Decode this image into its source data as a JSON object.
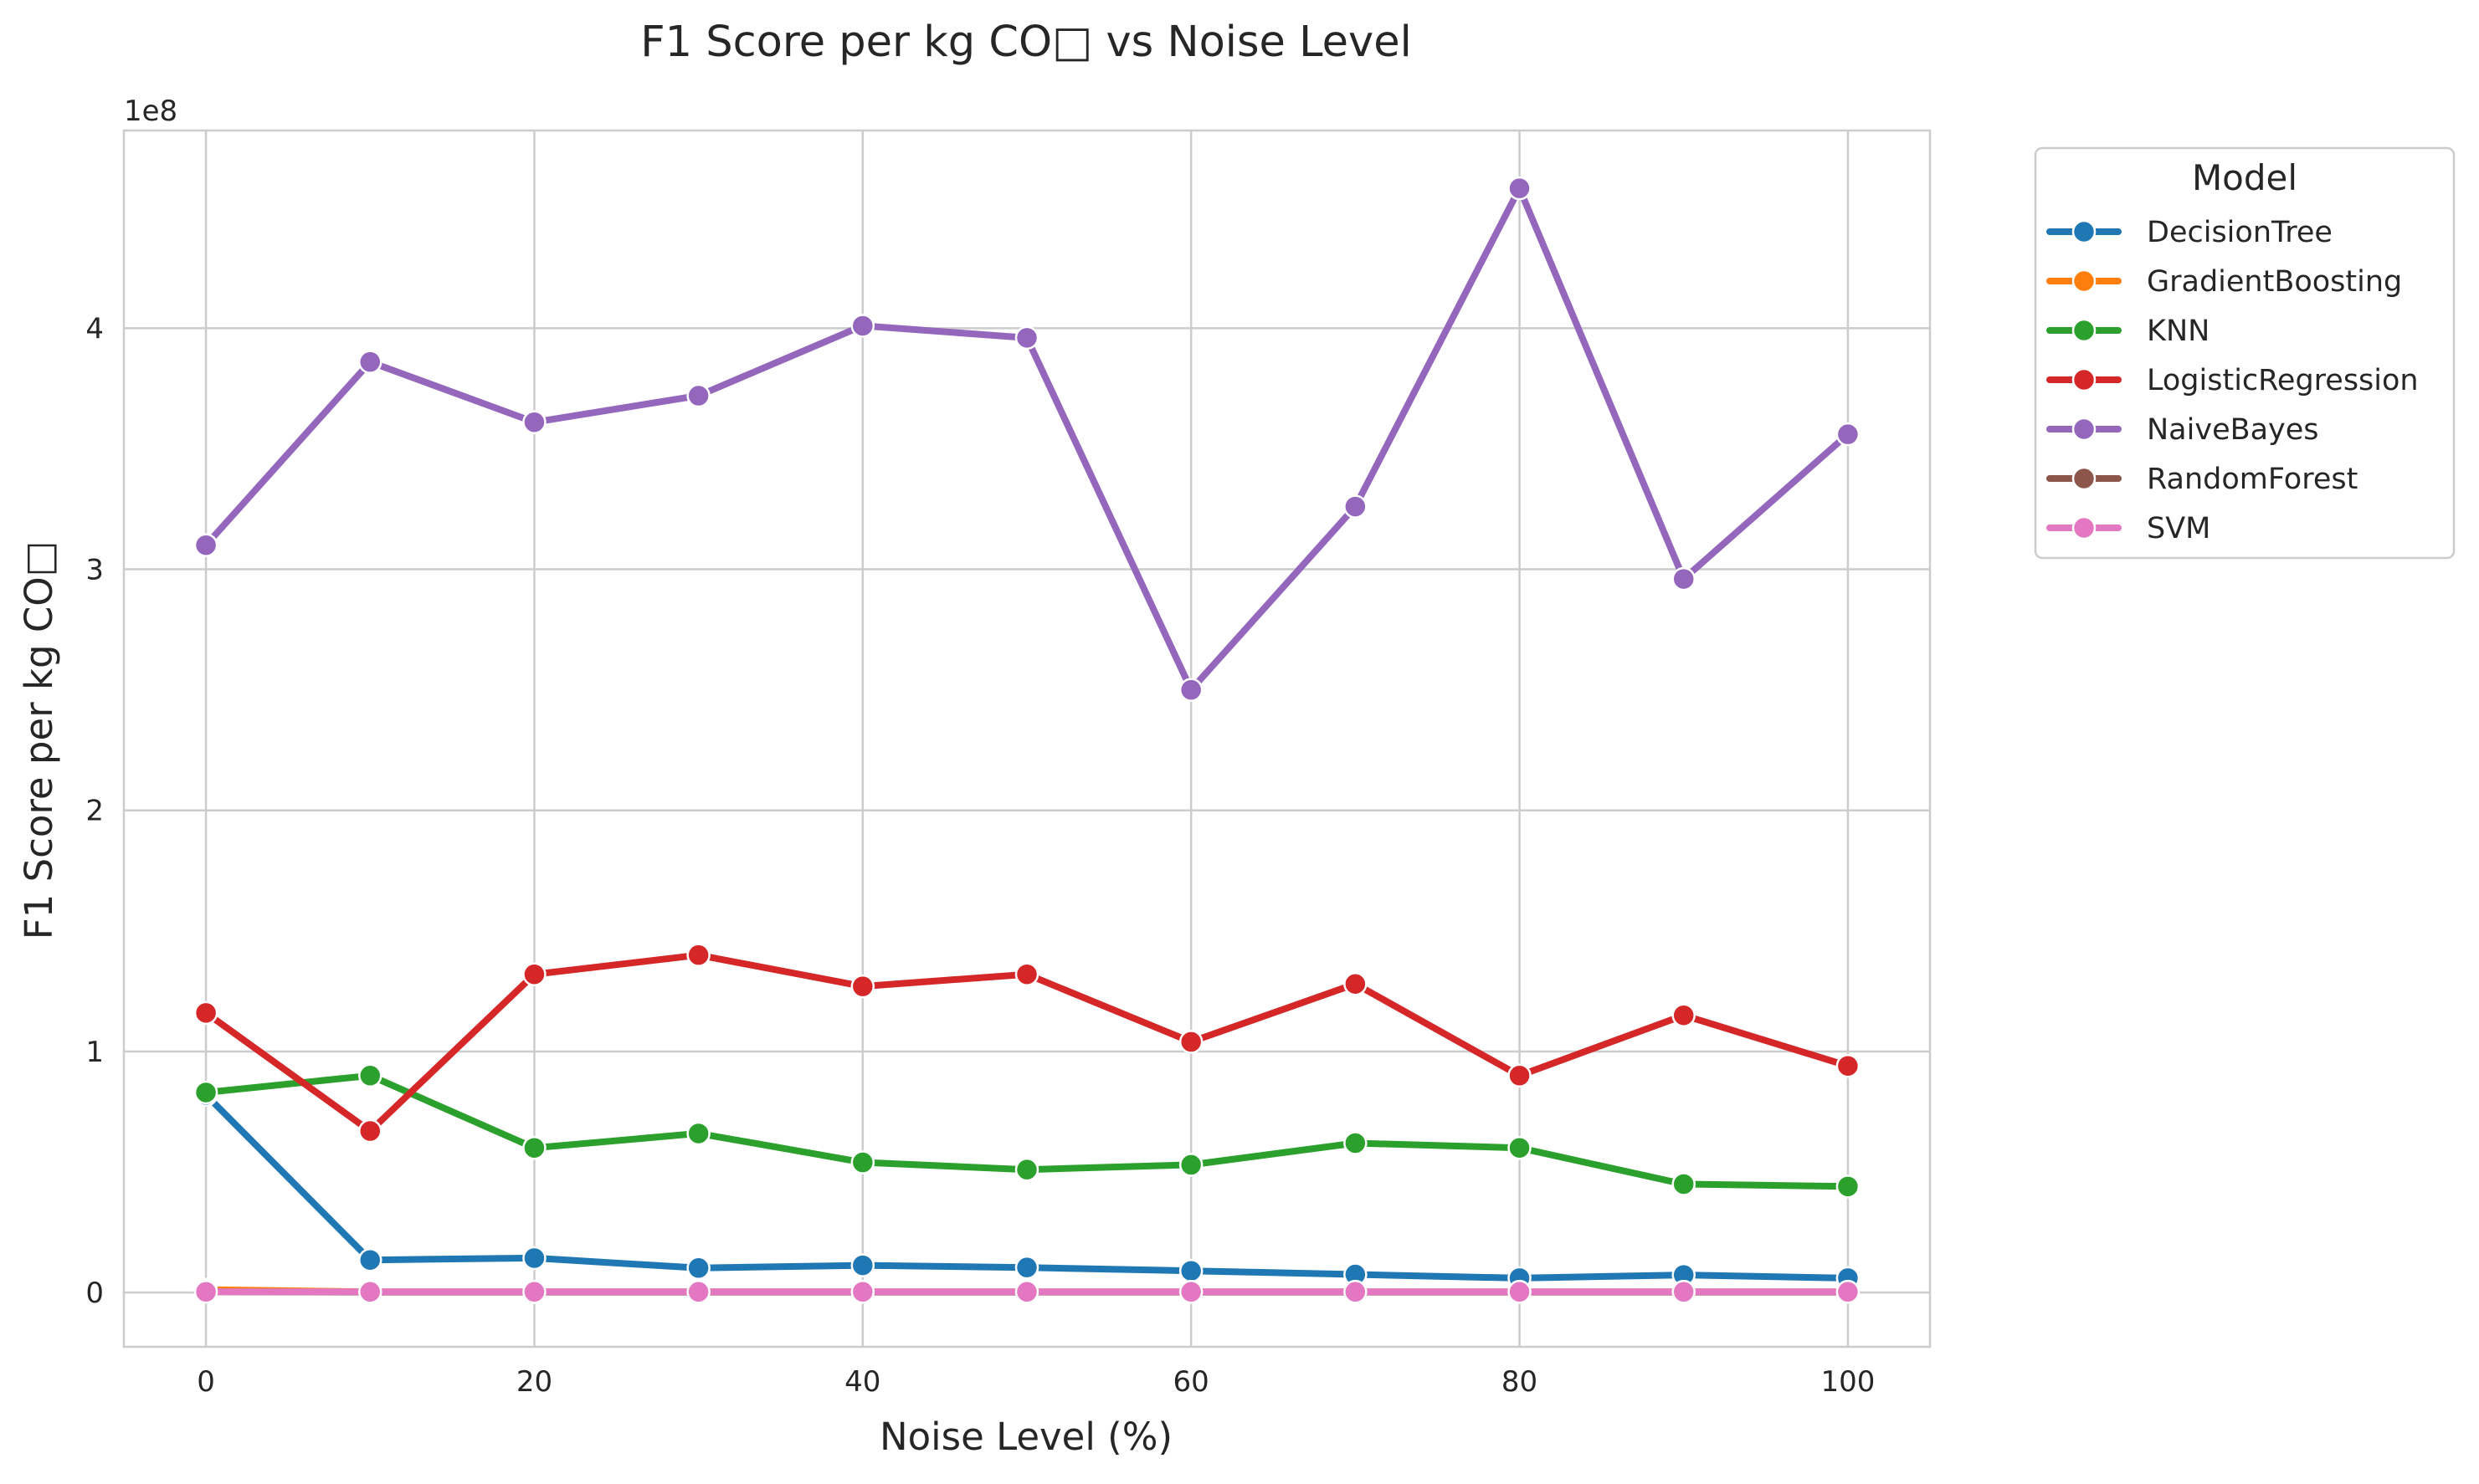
{
  "chart_data": {
    "type": "line",
    "title": "F1 Score per kg CO□ vs Noise Level",
    "xlabel": "Noise Level (%)",
    "ylabel": "F1 Score per kg CO□",
    "y_offset_label": "1e8",
    "y_scale": 100000000,
    "xlim": [
      -5,
      105
    ],
    "ylim": [
      -22500000,
      482000000
    ],
    "x_ticks": [
      0,
      20,
      40,
      60,
      80,
      100
    ],
    "x_tick_labels": [
      "0",
      "20",
      "40",
      "60",
      "80",
      "100"
    ],
    "y_ticks": [
      0,
      100000000,
      200000000,
      300000000,
      400000000
    ],
    "y_tick_labels": [
      "0",
      "1",
      "2",
      "3",
      "4"
    ],
    "grid": true,
    "legend": {
      "title": "Model",
      "placement": "outside-top-right"
    },
    "x": [
      0,
      10,
      20,
      30,
      40,
      50,
      60,
      70,
      80,
      90,
      100
    ],
    "series": [
      {
        "name": "DecisionTree",
        "color": "#1f77b4",
        "values": [
          82000000,
          13500000,
          14300000,
          10200000,
          11300000,
          10400000,
          9000000,
          7500000,
          6000000,
          7300000,
          6000000
        ]
      },
      {
        "name": "GradientBoosting",
        "color": "#ff7f0e",
        "values": [
          1200000,
          300000,
          300000,
          300000,
          300000,
          300000,
          300000,
          300000,
          300000,
          300000,
          300000
        ]
      },
      {
        "name": "KNN",
        "color": "#2ca02c",
        "values": [
          83000000,
          90000000,
          60000000,
          66000000,
          54000000,
          51000000,
          53000000,
          62000000,
          60000000,
          45000000,
          44000000
        ]
      },
      {
        "name": "LogisticRegression",
        "color": "#d62728",
        "values": [
          116000000,
          67000000,
          132000000,
          140000000,
          127000000,
          132000000,
          104000000,
          128000000,
          90000000,
          115000000,
          94000000
        ]
      },
      {
        "name": "NaiveBayes",
        "color": "#9467bd",
        "values": [
          310000000,
          386000000,
          361000000,
          372000000,
          401000000,
          396000000,
          250000000,
          326000000,
          458000000,
          296000000,
          356000000
        ]
      },
      {
        "name": "RandomForest",
        "color": "#8c564b",
        "values": [
          300000,
          200000,
          200000,
          200000,
          200000,
          200000,
          200000,
          200000,
          200000,
          200000,
          200000
        ]
      },
      {
        "name": "SVM",
        "color": "#e377c2",
        "values": [
          300000,
          300000,
          300000,
          300000,
          300000,
          300000,
          300000,
          300000,
          300000,
          300000,
          300000
        ]
      }
    ]
  }
}
